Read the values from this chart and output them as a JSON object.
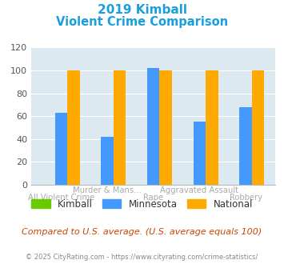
{
  "title_line1": "2019 Kimball",
  "title_line2": "Violent Crime Comparison",
  "title_color": "#1a9fdd",
  "categories": [
    "All Violent Crime",
    "Murder & Mans...",
    "Rape",
    "Aggravated Assault",
    "Robbery"
  ],
  "top_labels": [
    "",
    "Murder & Mans...",
    "",
    "Aggravated Assault",
    ""
  ],
  "bottom_labels": [
    "All Violent Crime",
    "",
    "Rape",
    "",
    "Robbery"
  ],
  "kimball": [
    0,
    0,
    0,
    0,
    0
  ],
  "minnesota": [
    63,
    42,
    102,
    55,
    68
  ],
  "national": [
    100,
    100,
    100,
    100,
    100
  ],
  "kimball_color": "#66cc00",
  "minnesota_color": "#4499ff",
  "national_color": "#ffaa00",
  "ylim": [
    0,
    120
  ],
  "yticks": [
    0,
    20,
    40,
    60,
    80,
    100,
    120
  ],
  "plot_bg": "#dce9f0",
  "footer_text": "Compared to U.S. average. (U.S. average equals 100)",
  "footer_color": "#cc4400",
  "credit_text": "© 2025 CityRating.com - https://www.cityrating.com/crime-statistics/",
  "credit_color": "#888888",
  "legend_labels": [
    "Kimball",
    "Minnesota",
    "National"
  ]
}
